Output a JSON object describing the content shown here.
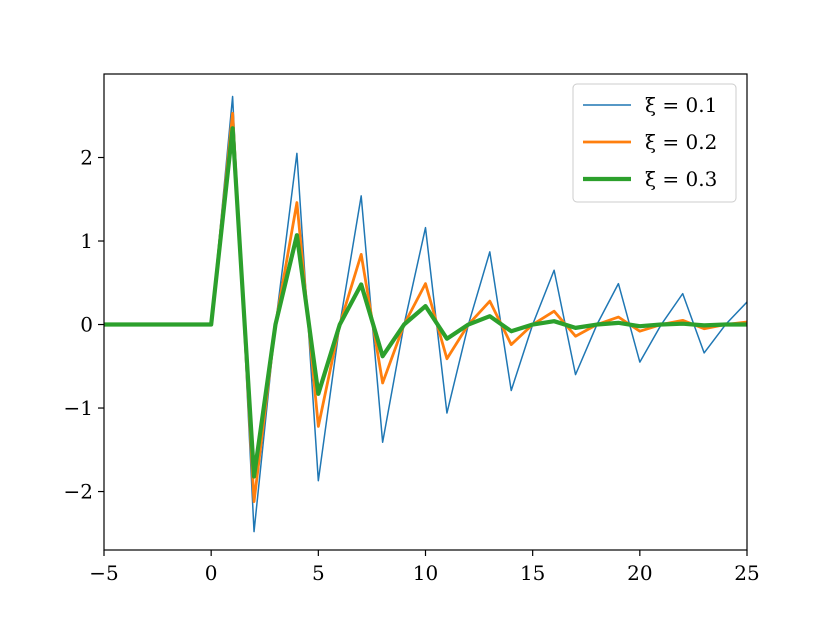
{
  "chart_data": {
    "type": "line",
    "title": "",
    "xlabel": "",
    "ylabel": "",
    "xlim": [
      -5,
      25
    ],
    "ylim": [
      -2.7,
      3.0
    ],
    "x_ticks": [
      -5,
      0,
      5,
      10,
      15,
      20,
      25
    ],
    "x_tick_labels": [
      "−5",
      "0",
      "5",
      "10",
      "15",
      "20",
      "25"
    ],
    "y_ticks": [
      -2,
      -1,
      0,
      1,
      2
    ],
    "y_tick_labels": [
      "−2",
      "−1",
      "0",
      "1",
      "2"
    ],
    "grid": false,
    "legend_position": "top-right",
    "x": [
      -5,
      -4,
      -3,
      -2,
      -1,
      0,
      1,
      2,
      3,
      4,
      5,
      6,
      7,
      8,
      9,
      10,
      11,
      12,
      13,
      14,
      15,
      16,
      17,
      18,
      19,
      20,
      21,
      22,
      23,
      24,
      25
    ],
    "series": [
      {
        "name": "ξ = 0.1",
        "color": "#1f77b4",
        "line_width": 1.5,
        "values": [
          0,
          0,
          0,
          0,
          0,
          0,
          2.73,
          -2.48,
          0,
          2.05,
          -1.87,
          0,
          1.54,
          -1.41,
          0,
          1.16,
          -1.06,
          0,
          0.87,
          -0.79,
          0,
          0.65,
          -0.6,
          0,
          0.49,
          -0.45,
          0,
          0.37,
          -0.34,
          0,
          0.27
        ]
      },
      {
        "name": "ξ = 0.2",
        "color": "#ff7f0e",
        "line_width": 2.8,
        "values": [
          0,
          0,
          0,
          0,
          0,
          0,
          2.53,
          -2.12,
          0,
          1.46,
          -1.22,
          0,
          0.84,
          -0.7,
          0,
          0.49,
          -0.41,
          0,
          0.28,
          -0.24,
          0,
          0.16,
          -0.14,
          0,
          0.09,
          -0.08,
          0,
          0.05,
          -0.05,
          0,
          0.03
        ]
      },
      {
        "name": "ξ = 0.3",
        "color": "#2ca02c",
        "line_width": 4.2,
        "values": [
          0,
          0,
          0,
          0,
          0,
          0,
          2.35,
          -1.82,
          0,
          1.07,
          -0.83,
          0,
          0.48,
          -0.38,
          0,
          0.22,
          -0.17,
          0,
          0.1,
          -0.08,
          0,
          0.04,
          -0.04,
          0,
          0.02,
          -0.02,
          0,
          0.01,
          -0.01,
          0,
          0.0
        ]
      }
    ]
  }
}
